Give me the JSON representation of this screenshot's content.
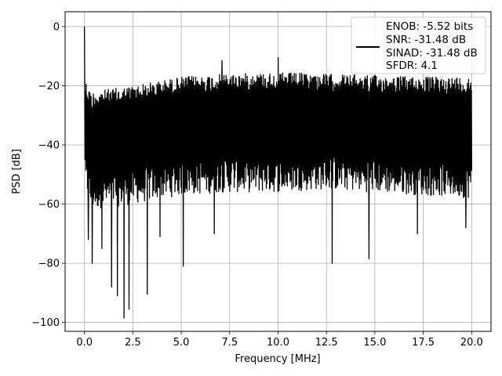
{
  "chart_data": {
    "type": "line",
    "title": "",
    "xlabel": "Frequency [MHz]",
    "ylabel": "PSD [dB]",
    "xlim": [
      -1.0,
      21.0
    ],
    "ylim": [
      -103.0,
      5.0
    ],
    "xticks": [
      0.0,
      2.5,
      5.0,
      7.5,
      10.0,
      12.5,
      15.0,
      17.5,
      20.0
    ],
    "xtick_labels": [
      "0.0",
      "2.5",
      "5.0",
      "7.5",
      "10.0",
      "12.5",
      "15.0",
      "17.5",
      "20.0"
    ],
    "yticks": [
      0,
      -20,
      -40,
      -60,
      -80,
      -100
    ],
    "ytick_labels": [
      "0",
      "−20",
      "−40",
      "−60",
      "−80",
      "−100"
    ],
    "grid": true,
    "legend_position": "top-right",
    "series": [
      {
        "color": "#000000",
        "x_range": [
          0.0,
          20.0
        ],
        "noise_floor_envelope": {
          "x": [
            0.0,
            0.3,
            2.5,
            5.0,
            7.5,
            10.0,
            12.5,
            15.0,
            17.5,
            20.0
          ],
          "upper": [
            -17,
            -22,
            -20,
            -17,
            -16,
            -15.5,
            -16,
            -16.5,
            -17,
            -17
          ],
          "lower": [
            -55,
            -62,
            -60,
            -57,
            -56,
            -56,
            -55,
            -56,
            -57,
            -58
          ]
        },
        "peaks": [
          {
            "x": 0.0,
            "y": 0.0
          },
          {
            "x": 7.1,
            "y": -11.5
          },
          {
            "x": 10.0,
            "y": -10.5
          }
        ],
        "dips": [
          {
            "x": 0.2,
            "y": -72
          },
          {
            "x": 0.4,
            "y": -80
          },
          {
            "x": 0.9,
            "y": -75
          },
          {
            "x": 1.4,
            "y": -88
          },
          {
            "x": 1.7,
            "y": -91
          },
          {
            "x": 2.05,
            "y": -98.5
          },
          {
            "x": 2.3,
            "y": -95.5
          },
          {
            "x": 3.25,
            "y": -90.5
          },
          {
            "x": 3.9,
            "y": -71
          },
          {
            "x": 5.1,
            "y": -81
          },
          {
            "x": 6.7,
            "y": -70
          },
          {
            "x": 12.8,
            "y": -80
          },
          {
            "x": 14.7,
            "y": -78.5
          },
          {
            "x": 17.2,
            "y": -70
          },
          {
            "x": 19.7,
            "y": -68
          }
        ]
      }
    ],
    "legend": [
      "ENOB: -5.52 bits",
      "SNR: -31.48 dB",
      "SINAD: -31.48 dB",
      "SFDR: 4.1"
    ]
  }
}
